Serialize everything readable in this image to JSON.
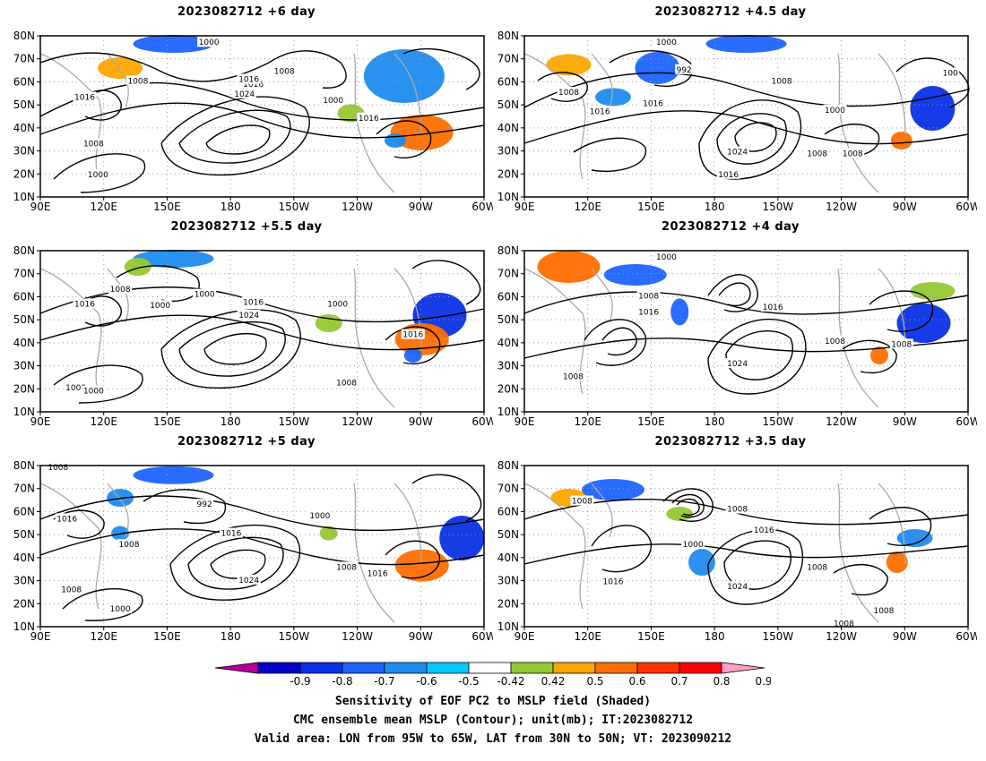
{
  "panels": [
    {
      "title": "2023082712  +6 day",
      "contour_labels": [
        "1000",
        "1008",
        "1016",
        "1008",
        "1016",
        "1024",
        "1016",
        "1000",
        "1008",
        "1000",
        "1016"
      ]
    },
    {
      "title": "2023082712  +4.5 day",
      "contour_labels": [
        "1000",
        "992",
        "1008",
        "1016",
        "1008",
        "1016",
        "1000",
        "1008",
        "1024",
        "1016",
        "1008",
        "100"
      ]
    },
    {
      "title": "2023082712  +5.5 day",
      "contour_labels": [
        "1016",
        "1008",
        "1000",
        "1000",
        "1008",
        "1016",
        "1024",
        "1000",
        "1016",
        "1008",
        "1000"
      ]
    },
    {
      "title": "2023082712  +4 day",
      "contour_labels": [
        "1000",
        "1008",
        "1016",
        "1016",
        "1008",
        "1008",
        "1024",
        "1008"
      ]
    },
    {
      "title": "2023082712  +5 day",
      "contour_labels": [
        "1008",
        "992",
        "1016",
        "1008",
        "1016",
        "1000",
        "1008",
        "1016",
        "1024",
        "1008",
        "1000"
      ]
    },
    {
      "title": "2023082712  +3.5 day",
      "contour_labels": [
        "1008",
        "1008",
        "1000",
        "1016",
        "1016",
        "1024",
        "1008",
        "1008",
        "1008"
      ]
    }
  ],
  "axes": {
    "lat_ticks": [
      "80N",
      "70N",
      "60N",
      "50N",
      "40N",
      "30N",
      "20N",
      "10N"
    ],
    "lon_ticks": [
      "90E",
      "120E",
      "150E",
      "180",
      "150W",
      "120W",
      "90W",
      "60W"
    ]
  },
  "colorbar": {
    "ticks": [
      "-0.9",
      "-0.8",
      "-0.7",
      "-0.6",
      "-0.5",
      "-0.42",
      "0.42",
      "0.5",
      "0.6",
      "0.7",
      "0.8",
      "0.9"
    ],
    "colors": [
      "#0000c8",
      "#0a32e6",
      "#1e64ff",
      "#1e8cf0",
      "#00c8ff",
      "#ffffff",
      "#96c832",
      "#ffa500",
      "#ff6e00",
      "#ff3200",
      "#ff0000"
    ],
    "low_extend_color": "#b4009b",
    "high_extend_color": "#ffa0c8"
  },
  "caption": {
    "line1": "Sensitivity of EOF PC2 to MSLP field (Shaded)",
    "line2": "CMC ensemble mean MSLP (Contour); unit(mb); IT:2023082712",
    "line3": "Valid area: LON from 95W to 65W, LAT from 30N to 50N; VT: 2023090212"
  }
}
